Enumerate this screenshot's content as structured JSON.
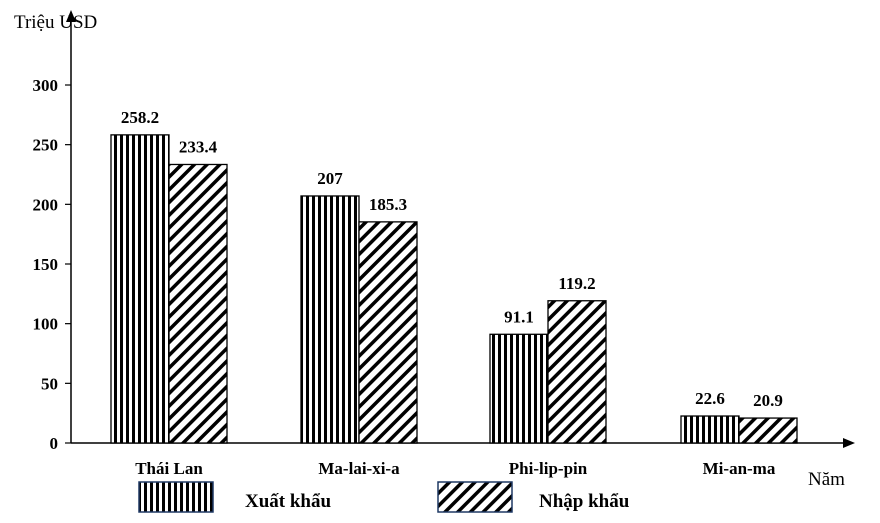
{
  "chart_data": {
    "type": "bar",
    "categories": [
      "Thái Lan",
      "Ma-lai-xi-a",
      "Phi-lip-pin",
      "Mi-an-ma"
    ],
    "series": [
      {
        "name": "Xuất khẩu",
        "values": [
          258.2,
          207,
          91.1,
          22.6
        ],
        "pattern": "vertical-stripes"
      },
      {
        "name": "Nhập  khẩu",
        "values": [
          233.4,
          185.3,
          119.2,
          20.9
        ],
        "pattern": "diagonal-stripes"
      }
    ],
    "data_labels": [
      [
        "258.2",
        "207",
        "91.1",
        "22.6"
      ],
      [
        "233.4",
        "185.3",
        "119.2",
        "20.9"
      ]
    ],
    "ylabel": "Triệu USD",
    "xlabel": "Năm",
    "ylim": [
      0,
      300
    ],
    "yticks": [
      0,
      50,
      100,
      150,
      200,
      250,
      300
    ],
    "grid": false,
    "legend_position": "bottom",
    "colors": {
      "stroke": "#000000",
      "fill": "#ffffff",
      "legend_border": "#1f3864"
    }
  }
}
